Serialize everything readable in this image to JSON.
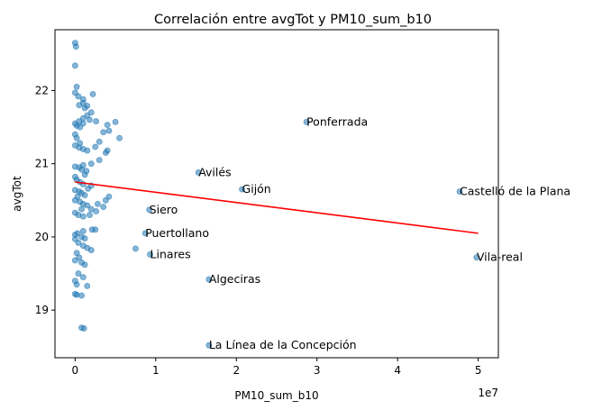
{
  "chart_data": {
    "type": "scatter",
    "title": "Correlación entre avgTot y PM10_sum_b10",
    "xlabel": "PM10_sum_b10",
    "ylabel": "avgTot",
    "x_multiplier_label": "1e7",
    "x_ticks": [
      {
        "value": 0,
        "label": "0"
      },
      {
        "value": 1,
        "label": "1"
      },
      {
        "value": 2,
        "label": "2"
      },
      {
        "value": 3,
        "label": "3"
      },
      {
        "value": 4,
        "label": "4"
      },
      {
        "value": 5,
        "label": "5"
      }
    ],
    "y_ticks": [
      {
        "value": 19,
        "label": "19"
      },
      {
        "value": 20,
        "label": "20"
      },
      {
        "value": 21,
        "label": "21"
      },
      {
        "value": 22,
        "label": "22"
      }
    ],
    "xlim": [
      -0.25,
      5.25
    ],
    "ylim": [
      18.35,
      22.83
    ],
    "x_unit": "1e7",
    "grid": false,
    "point_color": "#1f77b4",
    "fit_line": {
      "color": "#ff0000",
      "x": [
        0,
        5
      ],
      "y": [
        20.75,
        20.05
      ]
    },
    "labeled_points": [
      {
        "name": "Ponferrada",
        "x": 2.87,
        "y": 21.57
      },
      {
        "name": "Avilés",
        "x": 1.53,
        "y": 20.88
      },
      {
        "name": "Gijón",
        "x": 2.07,
        "y": 20.65
      },
      {
        "name": "Castelló de la Plana",
        "x": 4.77,
        "y": 20.62
      },
      {
        "name": "Siero",
        "x": 0.92,
        "y": 20.37
      },
      {
        "name": "Puertollano",
        "x": 0.87,
        "y": 20.05
      },
      {
        "name": "Linares",
        "x": 0.93,
        "y": 19.76
      },
      {
        "name": "Vila-real",
        "x": 4.98,
        "y": 19.72
      },
      {
        "name": "Algeciras",
        "x": 1.66,
        "y": 19.42
      },
      {
        "name": "La Línea de la Concepción",
        "x": 1.66,
        "y": 18.52
      }
    ],
    "points": [
      [
        0.0,
        22.65
      ],
      [
        0.01,
        22.6
      ],
      [
        0.0,
        22.34
      ],
      [
        0.02,
        22.05
      ],
      [
        0.0,
        21.97
      ],
      [
        0.04,
        21.92
      ],
      [
        0.1,
        21.88
      ],
      [
        0.22,
        21.95
      ],
      [
        0.05,
        21.8
      ],
      [
        0.15,
        21.79
      ],
      [
        0.1,
        21.83
      ],
      [
        0.12,
        21.76
      ],
      [
        0.2,
        21.7
      ],
      [
        0.15,
        21.66
      ],
      [
        0.1,
        21.62
      ],
      [
        0.18,
        21.6
      ],
      [
        0.05,
        21.58
      ],
      [
        0.0,
        21.55
      ],
      [
        0.02,
        21.52
      ],
      [
        0.06,
        21.5
      ],
      [
        0.1,
        21.55
      ],
      [
        0.26,
        21.58
      ],
      [
        0.35,
        21.43
      ],
      [
        0.4,
        21.53
      ],
      [
        0.5,
        21.57
      ],
      [
        0.42,
        21.45
      ],
      [
        0.55,
        21.35
      ],
      [
        0.3,
        21.3
      ],
      [
        0.0,
        21.4
      ],
      [
        0.02,
        21.35
      ],
      [
        0.06,
        21.28
      ],
      [
        0.0,
        21.25
      ],
      [
        0.05,
        21.22
      ],
      [
        0.1,
        21.2
      ],
      [
        0.15,
        21.18
      ],
      [
        0.25,
        21.23
      ],
      [
        0.4,
        21.18
      ],
      [
        0.38,
        21.15
      ],
      [
        0.3,
        21.05
      ],
      [
        0.2,
        21.0
      ],
      [
        0.1,
        20.98
      ],
      [
        0.0,
        20.96
      ],
      [
        0.05,
        20.95
      ],
      [
        0.08,
        20.92
      ],
      [
        0.14,
        20.9
      ],
      [
        0.12,
        20.85
      ],
      [
        0.0,
        20.82
      ],
      [
        0.02,
        20.78
      ],
      [
        0.06,
        20.75
      ],
      [
        0.1,
        20.72
      ],
      [
        0.2,
        20.7
      ],
      [
        0.16,
        20.66
      ],
      [
        0.0,
        20.64
      ],
      [
        0.05,
        20.62
      ],
      [
        0.08,
        20.6
      ],
      [
        0.12,
        20.57
      ],
      [
        0.03,
        20.55
      ],
      [
        0.0,
        20.5
      ],
      [
        0.06,
        20.48
      ],
      [
        0.1,
        20.45
      ],
      [
        0.15,
        20.43
      ],
      [
        0.28,
        20.45
      ],
      [
        0.38,
        20.5
      ],
      [
        0.42,
        20.55
      ],
      [
        0.35,
        20.41
      ],
      [
        0.2,
        20.38
      ],
      [
        0.08,
        20.38
      ],
      [
        0.0,
        20.33
      ],
      [
        0.04,
        20.3
      ],
      [
        0.1,
        20.28
      ],
      [
        0.18,
        20.3
      ],
      [
        0.26,
        20.35
      ],
      [
        0.25,
        20.1
      ],
      [
        0.21,
        20.1
      ],
      [
        0.1,
        20.08
      ],
      [
        0.03,
        20.05
      ],
      [
        0.0,
        20.03
      ],
      [
        0.08,
        20.0
      ],
      [
        0.12,
        19.98
      ],
      [
        0.0,
        19.97
      ],
      [
        0.04,
        19.92
      ],
      [
        0.1,
        19.88
      ],
      [
        0.15,
        19.85
      ],
      [
        0.2,
        19.82
      ],
      [
        0.02,
        19.78
      ],
      [
        0.05,
        19.72
      ],
      [
        0.0,
        19.68
      ],
      [
        0.08,
        19.65
      ],
      [
        0.12,
        19.62
      ],
      [
        0.75,
        19.84
      ],
      [
        0.04,
        19.5
      ],
      [
        0.1,
        19.45
      ],
      [
        0.0,
        19.4
      ],
      [
        0.02,
        19.35
      ],
      [
        0.15,
        19.33
      ],
      [
        0.0,
        19.22
      ],
      [
        0.02,
        19.21
      ],
      [
        0.08,
        19.2
      ],
      [
        0.08,
        18.76
      ],
      [
        0.11,
        18.75
      ]
    ]
  }
}
